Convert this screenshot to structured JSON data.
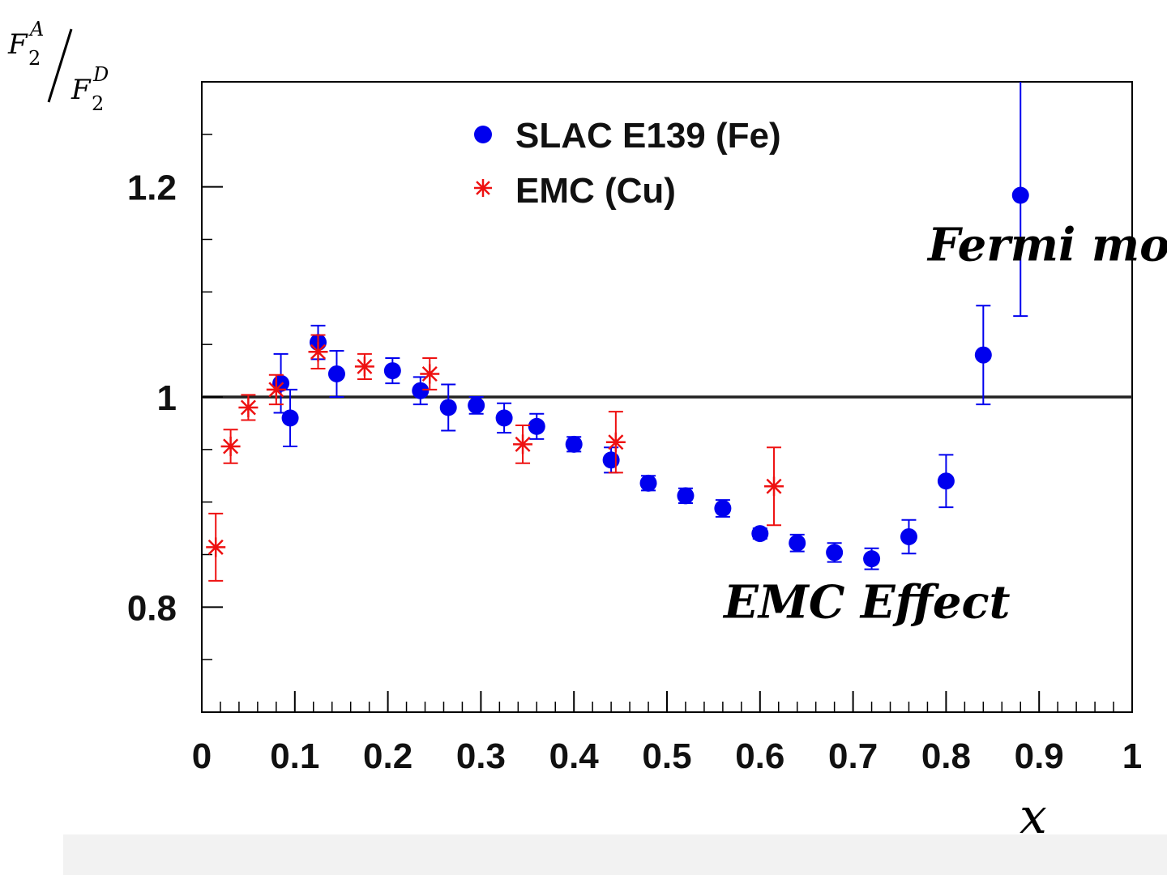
{
  "chart_data": {
    "type": "scatter",
    "x": {
      "min": 0,
      "max": 1,
      "ticks": [
        0,
        0.1,
        0.2,
        0.3,
        0.4,
        0.5,
        0.6,
        0.7,
        0.8,
        0.9,
        1
      ],
      "tick_labels": [
        "0",
        "0.1",
        "0.2",
        "0.3",
        "0.4",
        "0.5",
        "0.6",
        "0.7",
        "0.8",
        "0.9",
        "1"
      ],
      "label": "x"
    },
    "y": {
      "min": 0.7,
      "max": 1.3,
      "ticks": [
        0.8,
        1.0,
        1.2
      ],
      "tick_labels": [
        "0.8",
        "1",
        "1.2"
      ],
      "label_numerator": "F",
      "label_numerator_sub": "2",
      "label_numerator_sup": "A",
      "label_denominator": "F",
      "label_denominator_sub": "2",
      "label_denominator_sup": "D"
    },
    "reference_line": 1.0,
    "legend": {
      "placement": "top-center"
    },
    "series": [
      {
        "name": "SLAC E139 (Fe)",
        "color": "#0000ee",
        "marker": "circle",
        "points": [
          {
            "x": 0.085,
            "y": 1.013,
            "err": 0.028
          },
          {
            "x": 0.095,
            "y": 0.98,
            "err": 0.027
          },
          {
            "x": 0.125,
            "y": 1.052,
            "err": 0.016
          },
          {
            "x": 0.145,
            "y": 1.022,
            "err": 0.022
          },
          {
            "x": 0.205,
            "y": 1.025,
            "err": 0.012
          },
          {
            "x": 0.235,
            "y": 1.006,
            "err": 0.013
          },
          {
            "x": 0.265,
            "y": 0.99,
            "err": 0.022
          },
          {
            "x": 0.295,
            "y": 0.992,
            "err": 0.008
          },
          {
            "x": 0.325,
            "y": 0.98,
            "err": 0.014
          },
          {
            "x": 0.36,
            "y": 0.972,
            "err": 0.012
          },
          {
            "x": 0.4,
            "y": 0.955,
            "err": 0.007
          },
          {
            "x": 0.44,
            "y": 0.94,
            "err": 0.012
          },
          {
            "x": 0.48,
            "y": 0.918,
            "err": 0.007
          },
          {
            "x": 0.52,
            "y": 0.906,
            "err": 0.007
          },
          {
            "x": 0.56,
            "y": 0.894,
            "err": 0.008
          },
          {
            "x": 0.6,
            "y": 0.87,
            "err": 0.005
          },
          {
            "x": 0.64,
            "y": 0.861,
            "err": 0.008
          },
          {
            "x": 0.68,
            "y": 0.852,
            "err": 0.009
          },
          {
            "x": 0.72,
            "y": 0.846,
            "err": 0.01
          },
          {
            "x": 0.76,
            "y": 0.867,
            "err": 0.016
          },
          {
            "x": 0.8,
            "y": 0.92,
            "err": 0.025
          },
          {
            "x": 0.84,
            "y": 1.04,
            "err": 0.047
          },
          {
            "x": 0.88,
            "y": 1.192,
            "err": 0.115
          }
        ]
      },
      {
        "name": "EMC (Cu)",
        "color": "#ee1111",
        "marker": "asterisk",
        "points": [
          {
            "x": 0.015,
            "y": 0.857,
            "err": 0.032
          },
          {
            "x": 0.031,
            "y": 0.953,
            "err": 0.016
          },
          {
            "x": 0.05,
            "y": 0.99,
            "err": 0.012
          },
          {
            "x": 0.08,
            "y": 1.007,
            "err": 0.014
          },
          {
            "x": 0.125,
            "y": 1.043,
            "err": 0.016
          },
          {
            "x": 0.175,
            "y": 1.029,
            "err": 0.012
          },
          {
            "x": 0.245,
            "y": 1.022,
            "err": 0.015
          },
          {
            "x": 0.345,
            "y": 0.955,
            "err": 0.018
          },
          {
            "x": 0.445,
            "y": 0.957,
            "err": 0.029
          },
          {
            "x": 0.615,
            "y": 0.915,
            "err": 0.037
          }
        ]
      }
    ],
    "annotations": [
      {
        "text": "Fermi motion",
        "x": 0.965,
        "y": 1.13
      },
      {
        "text": "EMC Effect",
        "x": 0.715,
        "y": 0.79
      }
    ]
  }
}
